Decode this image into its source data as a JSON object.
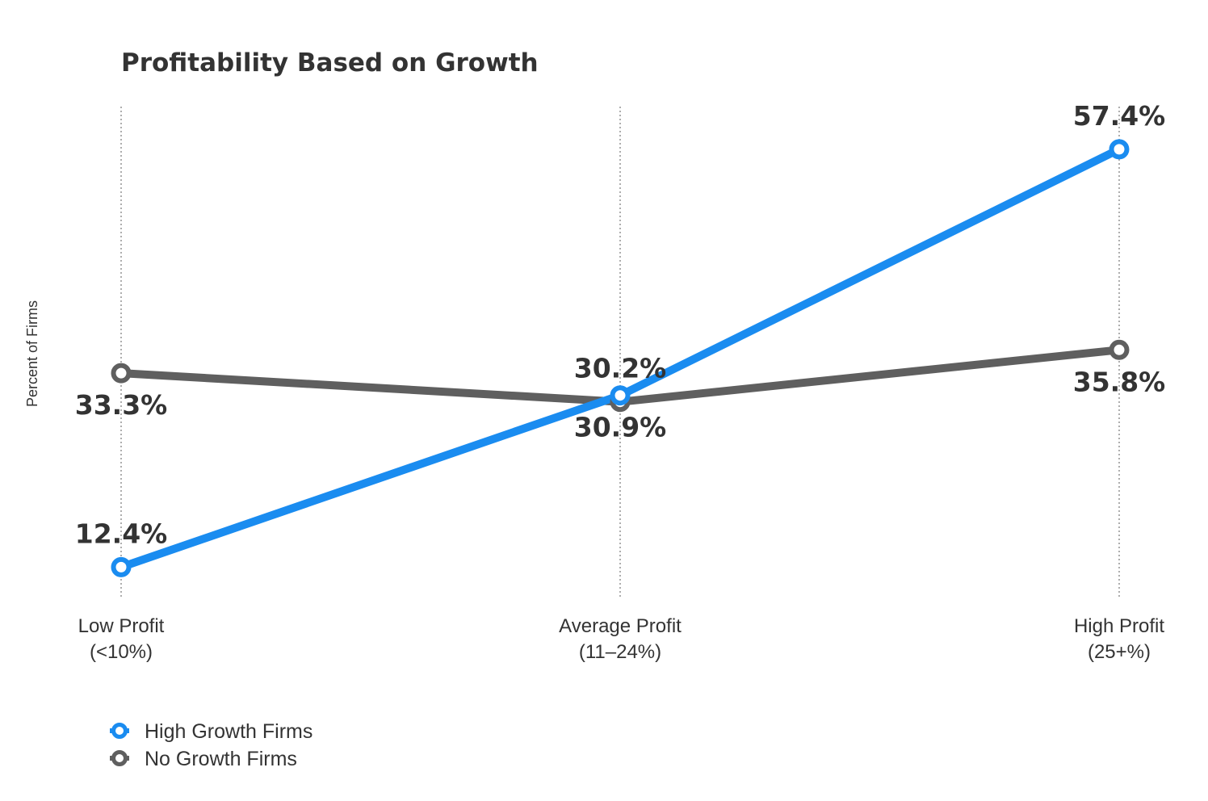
{
  "chart_data": {
    "type": "line",
    "title": "Profitability Based on Growth",
    "xlabel": "",
    "ylabel": "Percent of Firms",
    "categories": [
      [
        "Low Profit",
        "(<10%)"
      ],
      [
        "Average Profit",
        "(11–24%)"
      ],
      [
        "High Profit",
        "(25+%)"
      ]
    ],
    "ylim": [
      0,
      66
    ],
    "grid": "vertical-dotted",
    "legend_position": "bottom-left",
    "series": [
      {
        "name": "High Growth Firms",
        "color": "#1a8cf0",
        "values": [
          12.4,
          30.9,
          57.4
        ],
        "labels": [
          "12.4%",
          "30.9%",
          "57.4%"
        ],
        "label_positions": [
          "above",
          "below",
          "above"
        ]
      },
      {
        "name": "No Growth Firms",
        "color": "#5f5f5f",
        "values": [
          33.3,
          30.2,
          35.8
        ],
        "labels": [
          "33.3%",
          "30.2%",
          "35.8%"
        ],
        "label_positions": [
          "below",
          "above",
          "below"
        ]
      }
    ]
  }
}
